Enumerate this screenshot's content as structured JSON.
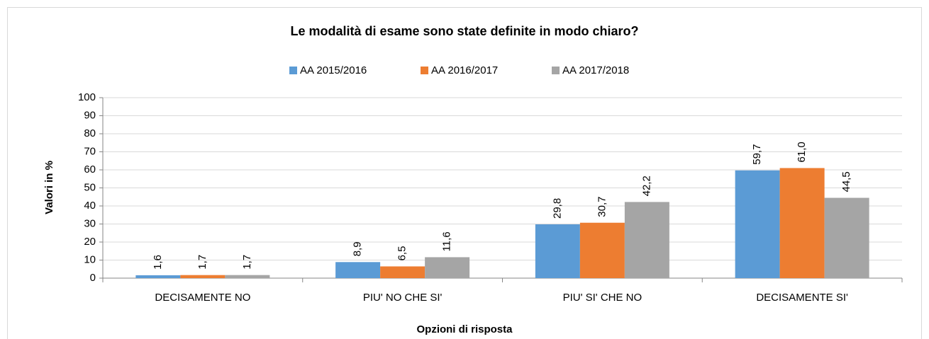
{
  "chart_data": {
    "type": "bar",
    "title": "Le modalità di esame sono state definite in modo chiaro?",
    "x_label": "Opzioni di risposta",
    "y_label": "Valori in %",
    "categories": [
      "DECISAMENTE NO",
      "PIU' NO CHE SI'",
      "PIU' SI' CHE NO",
      "DECISAMENTE SI'"
    ],
    "series": [
      {
        "name": "AA 2015/2016",
        "color": "#5b9bd5",
        "values": [
          1.6,
          8.9,
          29.8,
          59.7
        ],
        "value_labels": [
          "1,6",
          "8,9",
          "29,8",
          "59,7"
        ]
      },
      {
        "name": "AA 2016/2017",
        "color": "#ed7d31",
        "values": [
          1.7,
          6.5,
          30.7,
          61.0
        ],
        "value_labels": [
          "1,7",
          "6,5",
          "30,7",
          "61,0"
        ]
      },
      {
        "name": "AA 2017/2018",
        "color": "#a5a5a5",
        "values": [
          1.7,
          11.6,
          42.2,
          44.5
        ],
        "value_labels": [
          "1,7",
          "11,6",
          "42,2",
          "44,5"
        ]
      }
    ],
    "ylim": [
      0,
      100
    ],
    "yticks": [
      0,
      10,
      20,
      30,
      40,
      50,
      60,
      70,
      80,
      90,
      100
    ],
    "grid": true,
    "legend": "top"
  }
}
